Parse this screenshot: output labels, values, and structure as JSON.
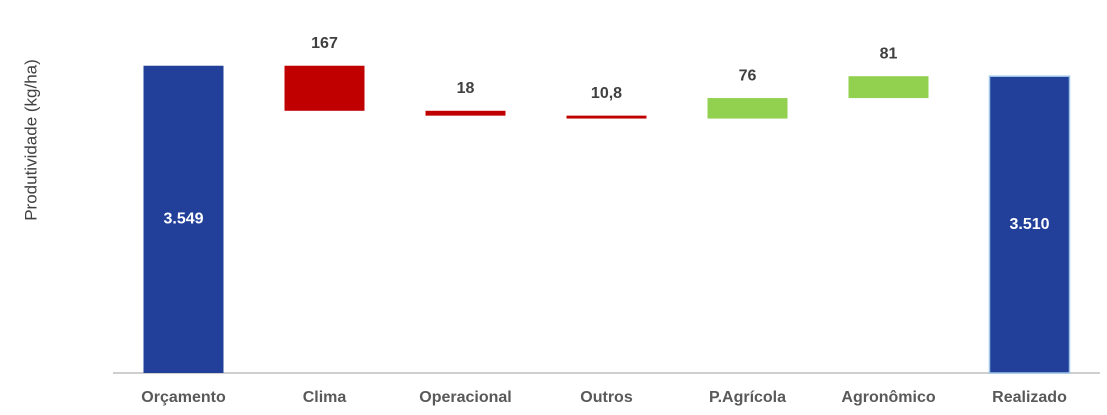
{
  "chart_data": {
    "type": "waterfall",
    "y_label": "Produtividade (kg/ha)",
    "categories": [
      "Orçamento",
      "Clima",
      "Operacional",
      "Outros",
      "P.Agrícola",
      "Agronômico",
      "Realizado"
    ],
    "values": [
      3549,
      -167,
      -18,
      -10.8,
      76,
      81,
      3510
    ],
    "value_labels": [
      "3.549",
      "167",
      "18",
      "10,8",
      "76",
      "81",
      "3.510"
    ],
    "colors": [
      "#22409a",
      "#c00000",
      "#c00000",
      "#c00000",
      "#92d050",
      "#92d050",
      "#22409a"
    ],
    "ylim": [
      2410,
      3700
    ]
  }
}
